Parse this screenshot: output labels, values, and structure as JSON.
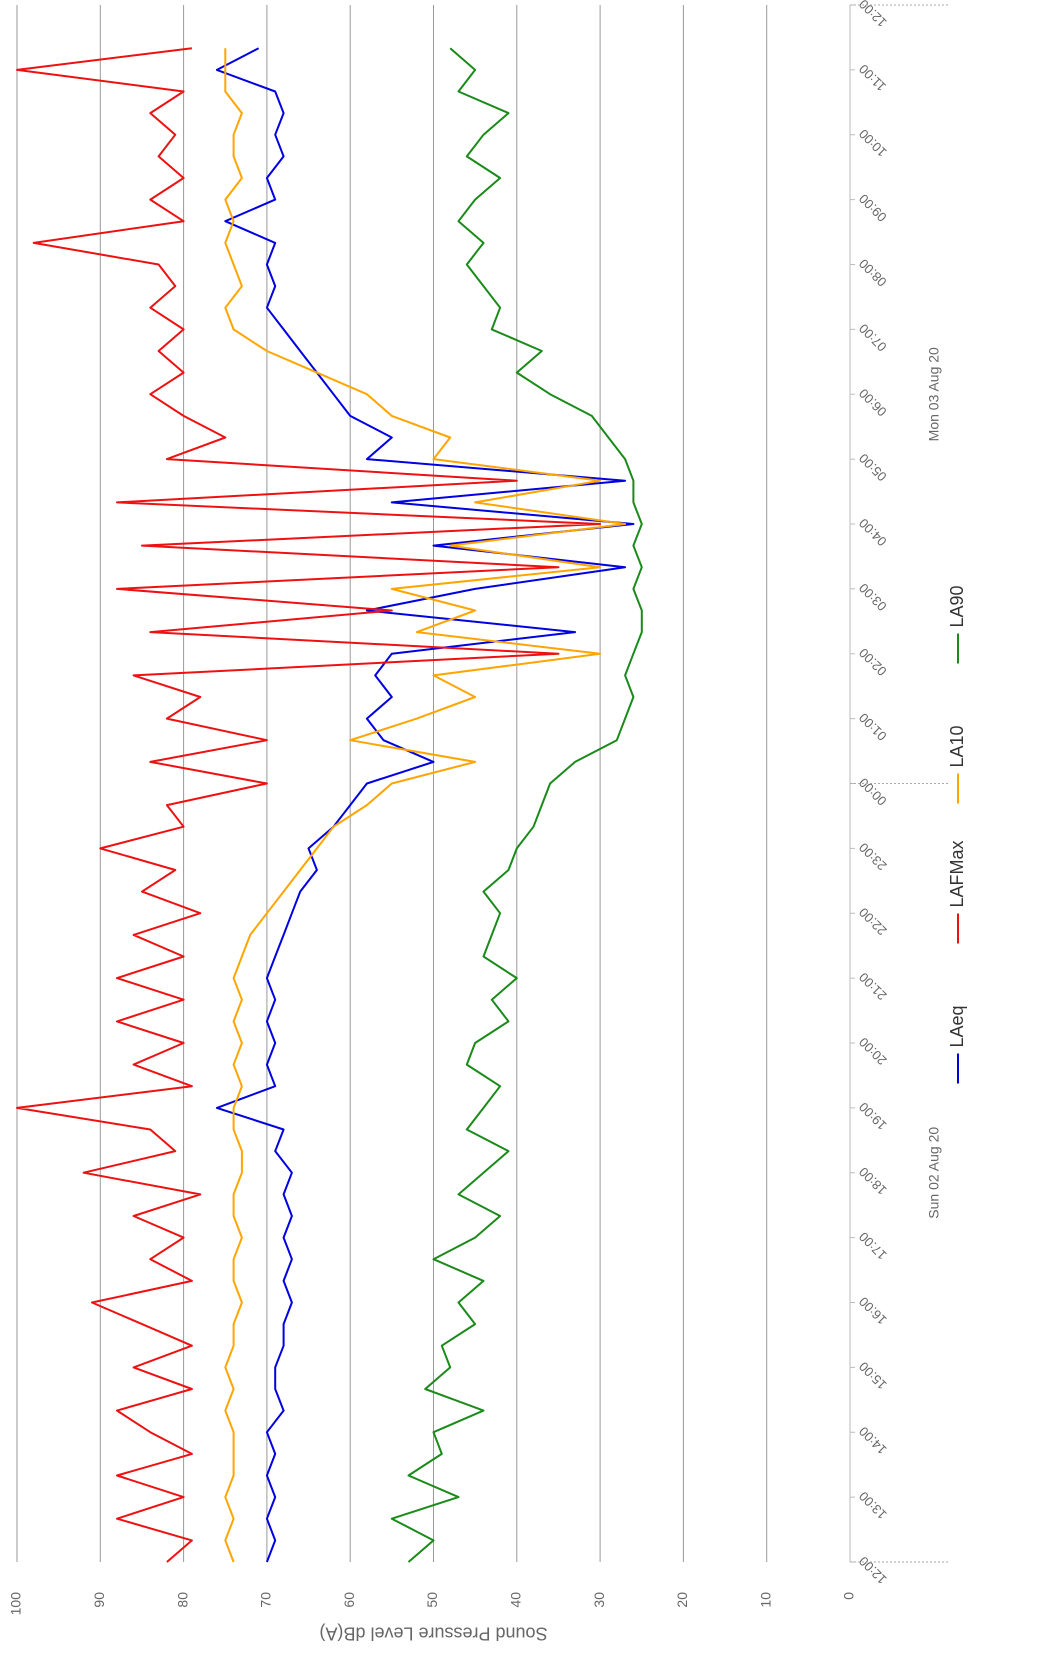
{
  "chart_data": {
    "type": "line",
    "y_label": "Sound Pressure Level dB(A)",
    "categories": [
      "12:00",
      "12:20",
      "12:40",
      "13:00",
      "13:20",
      "13:40",
      "14:00",
      "14:20",
      "14:40",
      "15:00",
      "15:20",
      "15:40",
      "16:00",
      "16:20",
      "16:40",
      "17:00",
      "17:20",
      "17:40",
      "18:00",
      "18:20",
      "18:40",
      "19:00",
      "19:20",
      "19:40",
      "20:00",
      "20:20",
      "20:40",
      "21:00",
      "21:20",
      "21:40",
      "22:00",
      "22:20",
      "22:40",
      "23:00",
      "23:20",
      "23:40",
      "00:00",
      "00:20",
      "00:40",
      "01:00",
      "01:20",
      "01:40",
      "02:00",
      "02:20",
      "02:40",
      "03:00",
      "03:20",
      "03:40",
      "04:00",
      "04:20",
      "04:40",
      "05:00",
      "05:20",
      "05:40",
      "06:00",
      "06:20",
      "06:40",
      "07:00",
      "07:20",
      "07:40",
      "08:00",
      "08:20",
      "08:40",
      "09:00",
      "09:20",
      "09:40",
      "10:00",
      "10:20",
      "10:40",
      "11:00",
      "11:20"
    ],
    "series": [
      {
        "name": "LAeq",
        "color": "#0000e0",
        "values": [
          70,
          69,
          70,
          69,
          70,
          69,
          70,
          68,
          69,
          69,
          68,
          68,
          67,
          68,
          67,
          68,
          67,
          68,
          67,
          69,
          68,
          76,
          69,
          70,
          69,
          70,
          69,
          70,
          69,
          68,
          67,
          66,
          64,
          65,
          62,
          60,
          58,
          50,
          56,
          58,
          55,
          57,
          55,
          33,
          58,
          45,
          27,
          50,
          26,
          55,
          27,
          58,
          55,
          60,
          62,
          64,
          66,
          68,
          70,
          69,
          70,
          69,
          75,
          69,
          70,
          68,
          69,
          68,
          69,
          76,
          71
        ]
      },
      {
        "name": "LAFMax",
        "color": "#ee1111",
        "values": [
          82,
          79,
          88,
          80,
          88,
          79,
          84,
          88,
          79,
          86,
          79,
          85,
          91,
          79,
          84,
          80,
          86,
          78,
          92,
          81,
          84,
          100,
          79,
          86,
          80,
          88,
          80,
          88,
          80,
          86,
          78,
          85,
          81,
          90,
          80,
          82,
          70,
          84,
          70,
          82,
          78,
          86,
          35,
          84,
          55,
          88,
          35,
          85,
          30,
          88,
          40,
          82,
          75,
          80,
          84,
          80,
          83,
          80,
          84,
          81,
          83,
          98,
          80,
          84,
          80,
          83,
          81,
          84,
          80,
          100,
          79
        ]
      },
      {
        "name": "LA10",
        "color": "#ffa500",
        "values": [
          74,
          75,
          74,
          75,
          74,
          74,
          74,
          75,
          74,
          75,
          74,
          74,
          73,
          74,
          74,
          73,
          74,
          74,
          73,
          73,
          74,
          74,
          73,
          74,
          73,
          74,
          73,
          74,
          73,
          72,
          70,
          68,
          66,
          64,
          62,
          58,
          55,
          45,
          60,
          52,
          45,
          50,
          30,
          52,
          45,
          55,
          30,
          48,
          27,
          45,
          30,
          50,
          48,
          55,
          58,
          64,
          70,
          74,
          75,
          73,
          74,
          75,
          74,
          75,
          73,
          74,
          74,
          73,
          75,
          75,
          75
        ]
      },
      {
        "name": "LA90",
        "color": "#1a8a1a",
        "values": [
          53,
          50,
          55,
          47,
          53,
          49,
          50,
          44,
          51,
          48,
          49,
          45,
          47,
          44,
          50,
          45,
          42,
          47,
          44,
          41,
          46,
          44,
          42,
          46,
          45,
          41,
          43,
          40,
          44,
          43,
          42,
          44,
          41,
          40,
          38,
          37,
          36,
          33,
          28,
          27,
          26,
          27,
          26,
          25,
          25,
          26,
          25,
          26,
          25,
          26,
          26,
          27,
          29,
          31,
          36,
          40,
          37,
          43,
          42,
          44,
          46,
          44,
          47,
          45,
          42,
          46,
          44,
          41,
          47,
          45,
          48
        ]
      }
    ],
    "xlim": [
      0,
      72
    ],
    "xticks": [
      {
        "value": 0,
        "label": "12:00"
      },
      {
        "value": 3,
        "label": "13:00"
      },
      {
        "value": 6,
        "label": "14:00"
      },
      {
        "value": 9,
        "label": "15:00"
      },
      {
        "value": 12,
        "label": "16:00"
      },
      {
        "value": 15,
        "label": "17:00"
      },
      {
        "value": 18,
        "label": "18:00"
      },
      {
        "value": 21,
        "label": "19:00"
      },
      {
        "value": 24,
        "label": "20:00"
      },
      {
        "value": 27,
        "label": "21:00"
      },
      {
        "value": 30,
        "label": "22:00"
      },
      {
        "value": 33,
        "label": "23:00"
      },
      {
        "value": 36,
        "label": "00:00"
      },
      {
        "value": 39,
        "label": "01:00"
      },
      {
        "value": 42,
        "label": "02:00"
      },
      {
        "value": 45,
        "label": "03:00"
      },
      {
        "value": 48,
        "label": "04:00"
      },
      {
        "value": 51,
        "label": "05:00"
      },
      {
        "value": 54,
        "label": "06:00"
      },
      {
        "value": 57,
        "label": "07:00"
      },
      {
        "value": 60,
        "label": "08:00"
      },
      {
        "value": 63,
        "label": "09:00"
      },
      {
        "value": 66,
        "label": "10:00"
      },
      {
        "value": 69,
        "label": "11:00"
      },
      {
        "value": 72,
        "label": "12:00"
      }
    ],
    "x_groups": [
      {
        "label": "Sun 02 Aug 20",
        "from": 0,
        "to": 36
      },
      {
        "label": "Mon 03 Aug 20",
        "from": 36,
        "to": 72
      }
    ],
    "ylim": [
      0,
      100
    ],
    "yticks": [
      0,
      10,
      20,
      30,
      40,
      50,
      60,
      70,
      80,
      90,
      100
    ],
    "grid": true,
    "legend": "bottom"
  }
}
